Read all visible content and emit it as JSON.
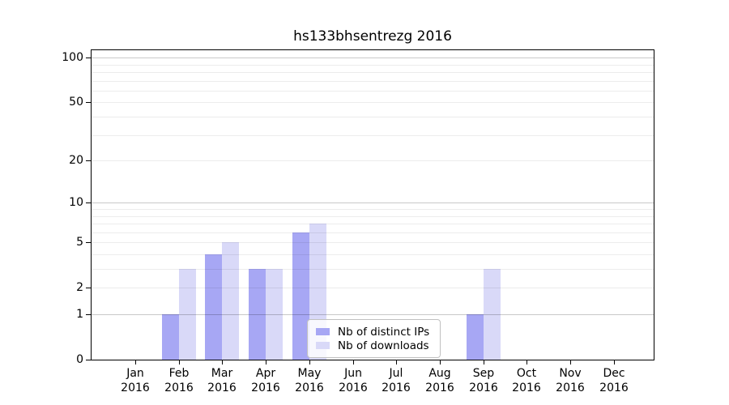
{
  "chart_data": {
    "type": "bar",
    "title": "hs133bhsentrezg 2016",
    "categories": [
      "Jan",
      "Feb",
      "Mar",
      "Apr",
      "May",
      "Jun",
      "Jul",
      "Aug",
      "Sep",
      "Oct",
      "Nov",
      "Dec"
    ],
    "category_year_label": "2016",
    "series": [
      {
        "name": "Nb of distinct IPs",
        "color": "#a7a7f4",
        "values": [
          0,
          1,
          4,
          3,
          6,
          0,
          0,
          0,
          1,
          0,
          0,
          0
        ]
      },
      {
        "name": "Nb of downloads",
        "color": "#d9d9f8",
        "values": [
          0,
          3,
          5,
          3,
          7,
          0,
          0,
          0,
          3,
          0,
          0,
          0
        ]
      }
    ],
    "yscale": "log1p",
    "ylim": [
      0,
      112
    ],
    "yticks": [
      100,
      50,
      20,
      10,
      5,
      2,
      1,
      0
    ],
    "xlabel": "",
    "ylabel": "",
    "grid": {
      "show": true,
      "major_values": [
        1,
        10,
        100
      ],
      "minor_values": [
        2,
        3,
        4,
        5,
        6,
        7,
        8,
        9,
        20,
        30,
        40,
        50,
        60,
        70,
        80,
        90
      ],
      "major_color": "rgba(0,0,0,0.21)",
      "minor_color": "rgba(0,0,0,0.075)"
    },
    "legend": {
      "position": "lower-center",
      "border_color": "#c0c0c0",
      "background": "rgba(255,255,255,0.8)"
    },
    "spine_color": "#000000"
  }
}
